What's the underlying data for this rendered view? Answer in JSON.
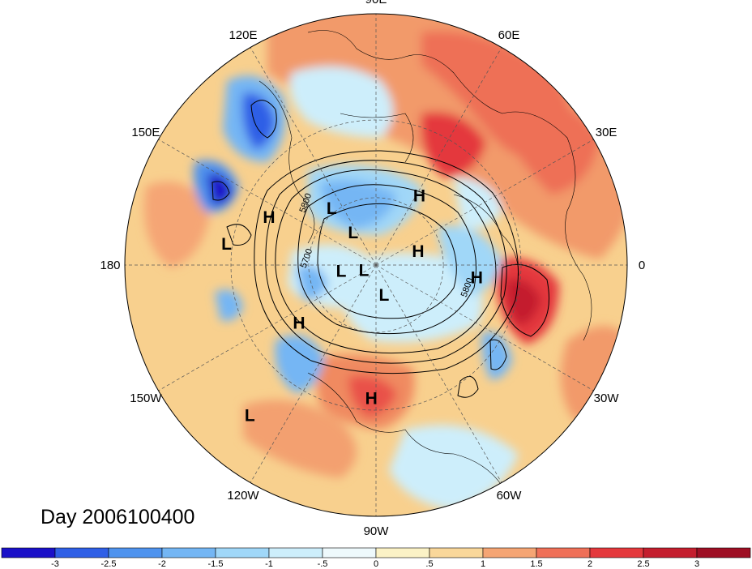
{
  "title": "Day 2006100400",
  "longitude_labels": [
    {
      "id": "lon-90e",
      "text": "90E",
      "lon": 90
    },
    {
      "id": "lon-60e",
      "text": "60E",
      "lon": 60
    },
    {
      "id": "lon-30e",
      "text": "30E",
      "lon": 30
    },
    {
      "id": "lon-0",
      "text": "0",
      "lon": 0
    },
    {
      "id": "lon-30w",
      "text": "30W",
      "lon": -30
    },
    {
      "id": "lon-60w",
      "text": "60W",
      "lon": -60
    },
    {
      "id": "lon-90w",
      "text": "90W",
      "lon": -90
    },
    {
      "id": "lon-120w",
      "text": "120W",
      "lon": -120
    },
    {
      "id": "lon-150w",
      "text": "150W",
      "lon": -150
    },
    {
      "id": "lon-180",
      "text": "180",
      "lon": 180
    },
    {
      "id": "lon-150e",
      "text": "150E",
      "lon": 150
    },
    {
      "id": "lon-120e",
      "text": "120E",
      "lon": 120
    }
  ],
  "pressure_centers": [
    {
      "type": "L",
      "lat": 58,
      "lon": 128
    },
    {
      "type": "L",
      "lat": 28,
      "lon": 172
    },
    {
      "type": "H",
      "lat": 40,
      "lon": 156
    },
    {
      "type": "H",
      "lat": 54,
      "lon": 58
    },
    {
      "type": "L",
      "lat": 72,
      "lon": 125
    },
    {
      "type": "H",
      "lat": 70,
      "lon": 18
    },
    {
      "type": "L",
      "lat": 74,
      "lon": -170
    },
    {
      "type": "L",
      "lat": 84,
      "lon": -157
    },
    {
      "type": "H",
      "lat": 46,
      "lon": -7
    },
    {
      "type": "L",
      "lat": 76,
      "lon": -75
    },
    {
      "type": "H",
      "lat": 48,
      "lon": -143
    },
    {
      "type": "H",
      "lat": 34,
      "lon": -92
    },
    {
      "type": "L",
      "lat": 14,
      "lon": -130
    }
  ],
  "contour_labels": [
    {
      "text": "5800",
      "lat": 50,
      "lon": 138
    },
    {
      "text": "5700",
      "lat": 60,
      "lon": 175
    },
    {
      "text": "5800",
      "lat": 48,
      "lon": -14
    }
  ],
  "colorbar": {
    "ticks": [
      "-3",
      "-2.5",
      "-2",
      "-1.5",
      "-1",
      "-.5",
      "0",
      ".5",
      "1",
      "1.5",
      "2",
      "2.5",
      "3"
    ],
    "colors": [
      "#1a10c8",
      "#2f5fe6",
      "#4f93ee",
      "#74b6f4",
      "#a0d7f8",
      "#cdeefb",
      "#eef9fc",
      "#fbf2c6",
      "#f9d79a",
      "#f5a574",
      "#ef7058",
      "#e4383c",
      "#c41e2e",
      "#9e0f24"
    ]
  },
  "colors": {
    "background": "#ffffff",
    "warm_base": "#f6c07a",
    "cold_base": "#bfe3f6"
  }
}
